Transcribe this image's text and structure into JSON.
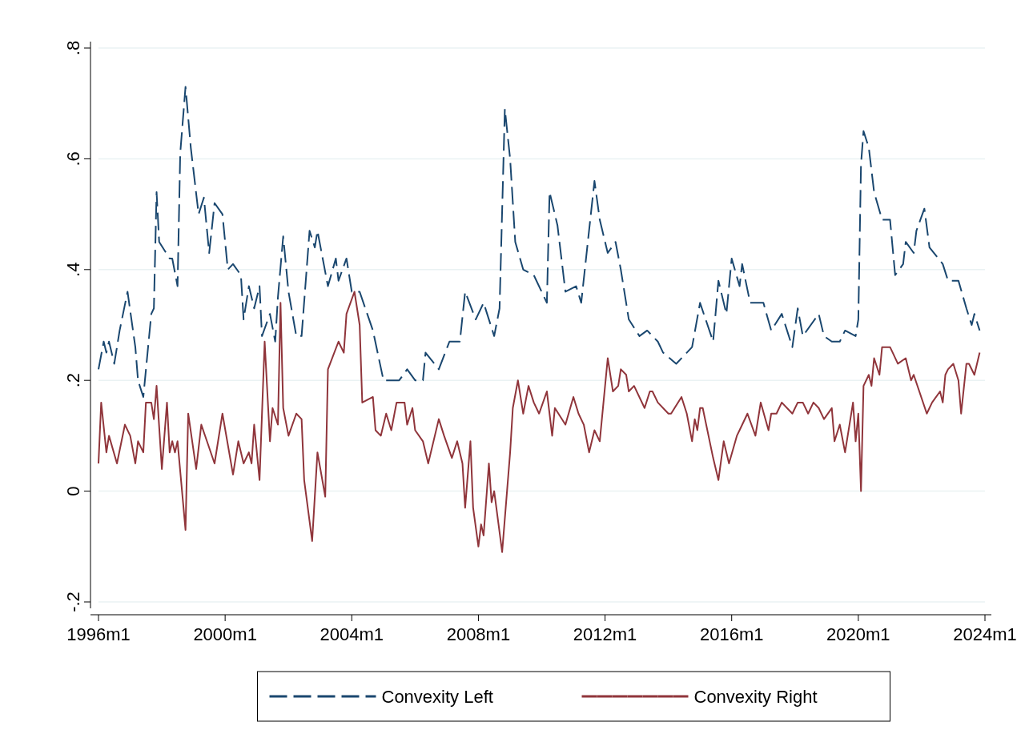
{
  "chart_data": {
    "type": "line",
    "xlim": [
      "1996-01",
      "2024-01"
    ],
    "ylim": [
      -0.2,
      0.8
    ],
    "xticks": [
      {
        "value": "1996-01",
        "label": "1996m1"
      },
      {
        "value": "2000-01",
        "label": "2000m1"
      },
      {
        "value": "2004-01",
        "label": "2004m1"
      },
      {
        "value": "2008-01",
        "label": "2008m1"
      },
      {
        "value": "2012-01",
        "label": "2012m1"
      },
      {
        "value": "2016-01",
        "label": "2016m1"
      },
      {
        "value": "2020-01",
        "label": "2020m1"
      },
      {
        "value": "2024-01",
        "label": "2024m1"
      }
    ],
    "yticks": [
      {
        "value": -0.2,
        "label": "-.2"
      },
      {
        "value": 0,
        "label": "0"
      },
      {
        "value": 0.2,
        "label": ".2"
      },
      {
        "value": 0.4,
        "label": ".4"
      },
      {
        "value": 0.6,
        "label": ".6"
      },
      {
        "value": 0.8,
        "label": ".8"
      }
    ],
    "grid": "y",
    "legend": "bottom",
    "series": [
      {
        "name": "Convexity Left",
        "color": "#1a476f",
        "line_style": "dashed",
        "x": [
          "1996-01",
          "1996-03",
          "1996-04",
          "1996-05",
          "1996-07",
          "1996-09",
          "1996-12",
          "1997-03",
          "1997-04",
          "1997-06",
          "1997-09",
          "1997-10",
          "1997-11",
          "1997-12",
          "1998-04",
          "1998-05",
          "1998-07",
          "1998-08",
          "1998-10",
          "1998-12",
          "1999-03",
          "1999-05",
          "1999-07",
          "1999-09",
          "1999-12",
          "2000-02",
          "2000-04",
          "2000-07",
          "2000-08",
          "2000-10",
          "2000-12",
          "2001-02",
          "2001-03",
          "2001-06",
          "2001-08",
          "2001-09",
          "2001-11",
          "2002-01",
          "2002-04",
          "2002-06",
          "2002-09",
          "2002-11",
          "2002-12",
          "2003-04",
          "2003-07",
          "2003-08",
          "2003-11",
          "2004-01",
          "2004-04",
          "2004-09",
          "2005-01",
          "2005-02",
          "2005-07",
          "2005-10",
          "2006-01",
          "2006-04",
          "2006-05",
          "2006-10",
          "2007-02",
          "2007-06",
          "2007-08",
          "2007-12",
          "2008-03",
          "2008-07",
          "2008-09",
          "2008-11",
          "2009-01",
          "2009-03",
          "2009-06",
          "2009-10",
          "2010-03",
          "2010-04",
          "2010-07",
          "2010-10",
          "2011-02",
          "2011-04",
          "2011-09",
          "2011-11",
          "2012-02",
          "2012-05",
          "2012-07",
          "2012-10",
          "2013-02",
          "2013-05",
          "2013-09",
          "2013-11",
          "2014-04",
          "2014-10",
          "2015-01",
          "2015-06",
          "2015-08",
          "2015-11",
          "2016-01",
          "2016-04",
          "2016-05",
          "2016-08",
          "2017-01",
          "2017-04",
          "2017-08",
          "2017-12",
          "2018-02",
          "2018-04",
          "2018-10",
          "2018-12",
          "2019-03",
          "2019-06",
          "2019-08",
          "2019-12",
          "2020-01",
          "2020-02",
          "2020-03",
          "2020-05",
          "2020-07",
          "2020-10",
          "2021-01",
          "2021-03",
          "2021-06",
          "2021-07",
          "2021-10",
          "2021-11",
          "2022-02",
          "2022-04",
          "2022-09",
          "2022-11",
          "2023-03",
          "2023-06",
          "2023-08",
          "2023-09",
          "2023-11"
        ],
        "values": [
          0.22,
          0.27,
          0.25,
          0.27,
          0.23,
          0.29,
          0.36,
          0.26,
          0.2,
          0.17,
          0.32,
          0.33,
          0.54,
          0.45,
          0.42,
          0.42,
          0.37,
          0.61,
          0.73,
          0.62,
          0.5,
          0.53,
          0.43,
          0.52,
          0.5,
          0.4,
          0.41,
          0.39,
          0.31,
          0.37,
          0.33,
          0.37,
          0.28,
          0.32,
          0.27,
          0.35,
          0.46,
          0.36,
          0.28,
          0.28,
          0.47,
          0.44,
          0.47,
          0.37,
          0.42,
          0.38,
          0.42,
          0.36,
          0.36,
          0.29,
          0.2,
          0.2,
          0.2,
          0.22,
          0.2,
          0.2,
          0.25,
          0.22,
          0.27,
          0.27,
          0.36,
          0.31,
          0.34,
          0.28,
          0.33,
          0.69,
          0.6,
          0.45,
          0.4,
          0.39,
          0.34,
          0.54,
          0.48,
          0.36,
          0.37,
          0.34,
          0.56,
          0.49,
          0.43,
          0.45,
          0.4,
          0.31,
          0.28,
          0.29,
          0.27,
          0.25,
          0.23,
          0.26,
          0.34,
          0.27,
          0.38,
          0.32,
          0.42,
          0.37,
          0.41,
          0.34,
          0.34,
          0.29,
          0.32,
          0.26,
          0.33,
          0.28,
          0.32,
          0.28,
          0.27,
          0.27,
          0.29,
          0.28,
          0.31,
          0.59,
          0.65,
          0.62,
          0.54,
          0.49,
          0.49,
          0.39,
          0.41,
          0.45,
          0.43,
          0.47,
          0.51,
          0.44,
          0.41,
          0.38,
          0.38,
          0.33,
          0.3,
          0.32,
          0.29
        ]
      },
      {
        "name": "Convexity Right",
        "color": "#90353b",
        "line_style": "solid",
        "x": [
          "1996-01",
          "1996-02",
          "1996-04",
          "1996-05",
          "1996-08",
          "1996-11",
          "1997-01",
          "1997-03",
          "1997-04",
          "1997-06",
          "1997-07",
          "1997-09",
          "1997-10",
          "1997-11",
          "1998-01",
          "1998-03",
          "1998-04",
          "1998-05",
          "1998-06",
          "1998-07",
          "1998-10",
          "1998-11",
          "1999-02",
          "1999-04",
          "1999-09",
          "1999-12",
          "2000-04",
          "2000-06",
          "2000-08",
          "2000-10",
          "2000-11",
          "2000-12",
          "2001-02",
          "2001-04",
          "2001-06",
          "2001-07",
          "2001-09",
          "2001-10",
          "2001-11",
          "2002-01",
          "2002-04",
          "2002-06",
          "2002-07",
          "2002-10",
          "2002-12",
          "2003-03",
          "2003-04",
          "2003-08",
          "2003-10",
          "2003-11",
          "2004-02",
          "2004-04",
          "2004-05",
          "2004-09",
          "2004-10",
          "2004-12",
          "2005-02",
          "2005-04",
          "2005-06",
          "2005-09",
          "2005-10",
          "2005-12",
          "2006-01",
          "2006-04",
          "2006-06",
          "2006-10",
          "2006-12",
          "2007-03",
          "2007-05",
          "2007-07",
          "2007-08",
          "2007-10",
          "2007-11",
          "2008-01",
          "2008-02",
          "2008-03",
          "2008-05",
          "2008-06",
          "2008-07",
          "2008-10",
          "2009-01",
          "2009-02",
          "2009-04",
          "2009-06",
          "2009-08",
          "2009-10",
          "2009-12",
          "2010-03",
          "2010-05",
          "2010-06",
          "2010-10",
          "2011-01",
          "2011-03",
          "2011-05",
          "2011-07",
          "2011-09",
          "2011-11",
          "2012-02",
          "2012-04",
          "2012-06",
          "2012-07",
          "2012-09",
          "2012-10",
          "2012-12",
          "2013-04",
          "2013-06",
          "2013-07",
          "2013-09",
          "2014-01",
          "2014-02",
          "2014-06",
          "2014-08",
          "2014-10",
          "2014-11",
          "2014-12",
          "2015-01",
          "2015-02",
          "2015-06",
          "2015-08",
          "2015-10",
          "2015-12",
          "2016-03",
          "2016-04",
          "2016-07",
          "2016-10",
          "2016-12",
          "2017-03",
          "2017-04",
          "2017-06",
          "2017-08",
          "2017-12",
          "2018-02",
          "2018-04",
          "2018-06",
          "2018-08",
          "2018-10",
          "2018-12",
          "2019-03",
          "2019-04",
          "2019-06",
          "2019-08",
          "2019-11",
          "2019-12",
          "2020-01",
          "2020-02",
          "2020-03",
          "2020-05",
          "2020-06",
          "2020-07",
          "2020-09",
          "2020-10",
          "2021-01",
          "2021-02",
          "2021-04",
          "2021-07",
          "2021-09",
          "2021-10",
          "2022-03",
          "2022-05",
          "2022-08",
          "2022-09",
          "2022-10",
          "2022-11",
          "2023-01",
          "2023-03",
          "2023-04",
          "2023-06",
          "2023-07",
          "2023-09",
          "2023-11"
        ],
        "values": [
          0.05,
          0.16,
          0.07,
          0.1,
          0.05,
          0.12,
          0.1,
          0.05,
          0.09,
          0.07,
          0.16,
          0.16,
          0.13,
          0.19,
          0.04,
          0.16,
          0.07,
          0.09,
          0.07,
          0.09,
          -0.07,
          0.14,
          0.04,
          0.12,
          0.05,
          0.14,
          0.03,
          0.09,
          0.05,
          0.07,
          0.05,
          0.12,
          0.02,
          0.27,
          0.09,
          0.15,
          0.12,
          0.34,
          0.15,
          0.1,
          0.14,
          0.13,
          0.02,
          -0.09,
          0.07,
          -0.01,
          0.22,
          0.27,
          0.25,
          0.32,
          0.36,
          0.3,
          0.16,
          0.17,
          0.11,
          0.1,
          0.14,
          0.11,
          0.16,
          0.16,
          0.12,
          0.15,
          0.11,
          0.09,
          0.05,
          0.13,
          0.1,
          0.06,
          0.09,
          0.05,
          -0.03,
          0.09,
          -0.03,
          -0.1,
          -0.06,
          -0.08,
          0.05,
          -0.02,
          0,
          -0.11,
          0.07,
          0.15,
          0.2,
          0.14,
          0.19,
          0.16,
          0.14,
          0.18,
          0.1,
          0.15,
          0.12,
          0.17,
          0.14,
          0.12,
          0.07,
          0.11,
          0.09,
          0.24,
          0.18,
          0.19,
          0.22,
          0.21,
          0.18,
          0.19,
          0.15,
          0.18,
          0.18,
          0.16,
          0.14,
          0.14,
          0.17,
          0.14,
          0.09,
          0.13,
          0.11,
          0.15,
          0.15,
          0.06,
          0.02,
          0.09,
          0.05,
          0.1,
          0.11,
          0.14,
          0.1,
          0.16,
          0.11,
          0.14,
          0.14,
          0.16,
          0.14,
          0.16,
          0.16,
          0.14,
          0.16,
          0.15,
          0.13,
          0.15,
          0.09,
          0.12,
          0.07,
          0.16,
          0.09,
          0.14,
          0,
          0.19,
          0.21,
          0.19,
          0.24,
          0.21,
          0.26,
          0.26,
          0.25,
          0.23,
          0.24,
          0.2,
          0.21,
          0.14,
          0.16,
          0.18,
          0.16,
          0.21,
          0.22,
          0.23,
          0.2,
          0.14,
          0.23,
          0.23,
          0.21,
          0.25
        ]
      }
    ]
  }
}
